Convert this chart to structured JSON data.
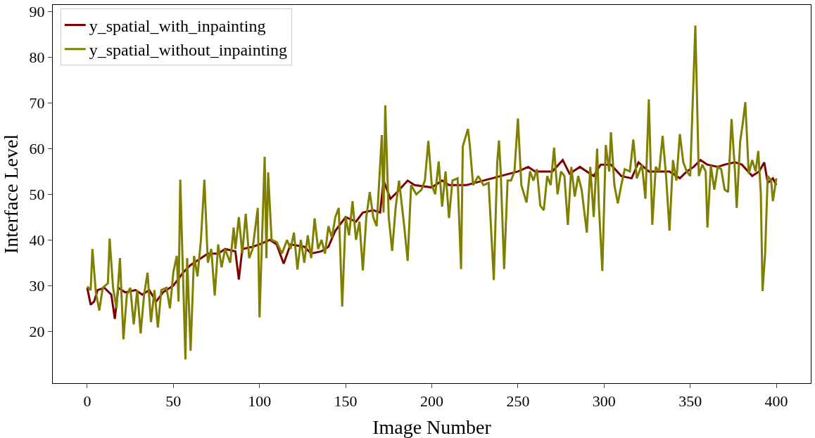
{
  "chart_data": {
    "type": "line",
    "xlabel": "Image Number",
    "ylabel": "Interface Level",
    "xlim": [
      -20,
      420
    ],
    "ylim": [
      8.6,
      91.5
    ],
    "xticks": [
      0,
      50,
      100,
      150,
      200,
      250,
      300,
      350,
      400
    ],
    "yticks": [
      20,
      30,
      40,
      50,
      60,
      70,
      80,
      90
    ],
    "legend": "top left",
    "marker": "none",
    "line_style": "solid",
    "series": [
      {
        "name": "y_spatial_with_inpainting",
        "color": "#800000",
        "x": [
          0,
          2,
          4,
          6,
          10,
          14,
          16,
          18,
          22,
          28,
          32,
          36,
          40,
          44,
          50,
          56,
          60,
          66,
          70,
          76,
          80,
          86,
          88,
          90,
          96,
          100,
          106,
          110,
          114,
          118,
          126,
          130,
          136,
          140,
          144,
          150,
          156,
          160,
          166,
          170,
          172,
          176,
          180,
          186,
          190,
          200,
          206,
          210,
          220,
          230,
          240,
          250,
          256,
          260,
          270,
          276,
          280,
          286,
          290,
          294,
          298,
          304,
          310,
          316,
          320,
          326,
          332,
          338,
          344,
          348,
          352,
          356,
          360,
          366,
          370,
          376,
          380,
          386,
          390,
          393,
          395,
          398,
          400
        ],
        "values": [
          29.5,
          25.8,
          26.5,
          29,
          29.5,
          28,
          22.7,
          29.5,
          28.5,
          29,
          28,
          29,
          26.5,
          28.5,
          30,
          33,
          34.5,
          36,
          37,
          37,
          38,
          37.5,
          31.3,
          38,
          38.5,
          39,
          40,
          39,
          34.8,
          39,
          38.5,
          37,
          37.5,
          38.5,
          42,
          45,
          44,
          46,
          46.5,
          46,
          53,
          49,
          50.5,
          53,
          52,
          51.5,
          53,
          52,
          52,
          53,
          54,
          55,
          56,
          55,
          55,
          57.5,
          54.5,
          56,
          55,
          54,
          56.5,
          56.5,
          54,
          53.5,
          57,
          55,
          55,
          55,
          53.5,
          55,
          56,
          57.5,
          56.5,
          56,
          56.5,
          57,
          56.5,
          54,
          55,
          57,
          52.5,
          53.5,
          52
        ]
      },
      {
        "name": "y_spatial_without_inpainting",
        "color": "#808000",
        "x": [
          0,
          2,
          3,
          5,
          7,
          9,
          12,
          13,
          15,
          17,
          19,
          21,
          23,
          25,
          27,
          29,
          31,
          33,
          35,
          37,
          39,
          41,
          43,
          46,
          48,
          50,
          52,
          53,
          54,
          56,
          57,
          58,
          60,
          62,
          64,
          66,
          68,
          70,
          72,
          74,
          76,
          78,
          80,
          83,
          85,
          86,
          88,
          90,
          92,
          94,
          96,
          99,
          100,
          103,
          104,
          105,
          107,
          110,
          113,
          116,
          118,
          120,
          122,
          124,
          126,
          128,
          130,
          132,
          134,
          136,
          138,
          140,
          142,
          144,
          146,
          148,
          150,
          152,
          154,
          156,
          158,
          160,
          162,
          164,
          166,
          168,
          171,
          172,
          173,
          175,
          177,
          179,
          181,
          184,
          186,
          188,
          191,
          194,
          196,
          198,
          200,
          202,
          204,
          206,
          208,
          210,
          212,
          215,
          217,
          218,
          221,
          222,
          224,
          227,
          230,
          233,
          236,
          238,
          239,
          240,
          242,
          244,
          246,
          248,
          250,
          252,
          255,
          257,
          259,
          261,
          263,
          265,
          267,
          269,
          271,
          273,
          275,
          277,
          279,
          281,
          283,
          285,
          287,
          290,
          292,
          294,
          296,
          297,
          299,
          301,
          303,
          304,
          306,
          308,
          310,
          312,
          315,
          317,
          319,
          322,
          324,
          326,
          328,
          330,
          332,
          334,
          336,
          338,
          340,
          342,
          344,
          346,
          348,
          350,
          353,
          355,
          357,
          359,
          360,
          362,
          364,
          366,
          368,
          370,
          372,
          374,
          376,
          377,
          379,
          380.5,
          382,
          384,
          386,
          388,
          389.5,
          391,
          392,
          393.5,
          395,
          397,
          398,
          400
        ],
        "values": [
          29.8,
          29,
          38,
          28.5,
          24.5,
          29.5,
          30.5,
          40.3,
          29.5,
          25,
          36,
          18.2,
          28,
          29.5,
          21.5,
          29,
          19.5,
          28,
          32.8,
          22,
          29,
          20.8,
          29,
          29.5,
          25,
          33,
          36.5,
          26.5,
          53.2,
          27,
          13.8,
          36,
          15.7,
          36.5,
          32,
          40,
          53.2,
          35,
          38,
          27.8,
          39,
          34,
          38,
          35,
          42.7,
          38,
          45,
          37,
          45.7,
          36,
          38,
          47,
          23,
          58.2,
          36,
          54.8,
          40,
          39.5,
          37,
          40,
          38,
          41.6,
          33.5,
          40,
          35,
          41,
          36,
          44.7,
          38,
          40,
          37,
          43,
          40.5,
          45,
          47,
          25.4,
          45,
          41,
          48.5,
          40,
          44,
          33.3,
          45,
          50.5,
          45,
          43,
          63,
          46,
          69.5,
          45,
          37.6,
          47,
          53,
          43,
          35.4,
          52,
          50,
          51,
          53,
          61.7,
          52,
          50,
          57.2,
          47.3,
          55,
          44.8,
          53,
          53.5,
          33.6,
          60.5,
          64.3,
          61,
          52,
          54,
          52,
          52.5,
          31.2,
          57,
          61.8,
          55,
          33.6,
          53,
          53,
          55,
          66.6,
          52,
          48.2,
          55,
          53,
          55.5,
          47.5,
          46.5,
          54,
          52,
          60.2,
          50,
          55,
          54,
          43.3,
          56,
          49.5,
          54,
          51,
          41.6,
          56,
          45,
          60,
          47.5,
          33.2,
          60.8,
          55,
          63.6,
          52,
          48,
          52,
          55.5,
          55,
          62,
          53.5,
          56.5,
          49,
          70.8,
          43.3,
          56,
          55,
          62.8,
          54,
          42,
          57.5,
          53,
          63.2,
          57,
          55,
          54,
          87,
          54,
          56.5,
          55,
          42.7,
          56.3,
          51,
          56,
          55.5,
          51,
          50.5,
          66.5,
          55,
          47,
          61.5,
          65.5,
          70.2,
          54.5,
          57.5,
          55,
          59.5,
          50.3,
          28.8,
          37,
          54,
          53,
          48.5,
          53.5
        ]
      }
    ]
  }
}
